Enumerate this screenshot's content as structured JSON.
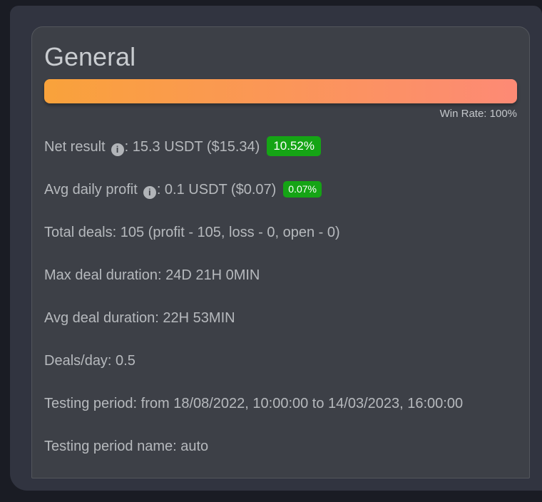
{
  "icons": {
    "info_glyph": "i"
  },
  "card": {
    "title": "General",
    "win_rate_label": "Win Rate: 100%",
    "win_rate_percent": 100,
    "bar_gradient": {
      "start": "#f9a23b",
      "end": "#fd8a75"
    },
    "badge_color": "#15a415",
    "stats": {
      "net_result": {
        "label": "Net result",
        "value": ": 15.3 USDT ($15.34)",
        "badge": "10.52%"
      },
      "avg_daily_profit": {
        "label": "Avg daily profit",
        "value": ": 0.1 USDT ($0.07)",
        "badge": "0.07%"
      },
      "total_deals": "Total deals: 105 (profit - 105, loss - 0, open - 0)",
      "max_deal_duration": "Max deal duration: 24D 21H 0MIN",
      "avg_deal_duration": "Avg deal duration: 22H 53MIN",
      "deals_per_day": "Deals/day: 0.5",
      "testing_period": "Testing period: from 18/08/2022, 10:00:00 to 14/03/2023, 16:00:00",
      "testing_period_name": "Testing period name: auto"
    }
  }
}
